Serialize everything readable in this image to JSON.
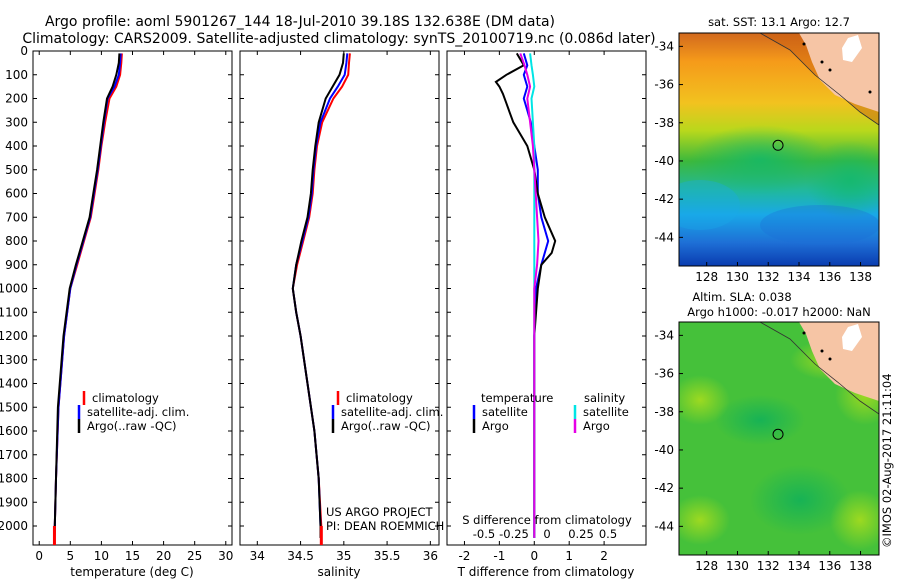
{
  "title_line1": "Argo profile: aoml 5901267_144 18-Jul-2010 39.18S 132.638E (DM data)",
  "title_line2": "Climatology: CARS2009. Satellite-adjusted climatology: synTS_20100719.nc (0.086d later)",
  "project_line1": "US ARGO PROJECT",
  "project_line2": "PI: DEAN ROEMMICH",
  "imos_stamp": "©IMOS 02-Aug-2017 21:11:04",
  "colors": {
    "climatology": "#ff0000",
    "satellite": "#0000ff",
    "argo": "#000000",
    "salinity_satellite": "#00e5e5",
    "salinity_argo": "#e600e6"
  },
  "chart_data": [
    {
      "type": "line",
      "id": "temperature",
      "xlabel": "temperature (deg C)",
      "ylabel": "",
      "xlim": [
        -1,
        31
      ],
      "ylim": [
        2080,
        0
      ],
      "xticks": [
        "0",
        "5",
        "10",
        "15",
        "20",
        "25",
        "30"
      ],
      "xtick_values": [
        0,
        5,
        10,
        15,
        20,
        25,
        30
      ],
      "yticks": [
        "0",
        "100",
        "200",
        "300",
        "400",
        "500",
        "600",
        "700",
        "800",
        "900",
        "1000",
        "1100",
        "1200",
        "1300",
        "1400",
        "1500",
        "1600",
        "1700",
        "1800",
        "1900",
        "2000"
      ],
      "ytick_values": [
        0,
        100,
        200,
        300,
        400,
        500,
        600,
        700,
        800,
        900,
        1000,
        1100,
        1200,
        1300,
        1400,
        1500,
        1600,
        1700,
        1800,
        1900,
        2000
      ],
      "legend": [
        "climatology",
        "satellite-adj. clim.",
        "Argo(..raw -QC)"
      ],
      "series": [
        {
          "name": "climatology",
          "color_key": "climatology",
          "depth": [
            10,
            50,
            100,
            150,
            200,
            300,
            400,
            500,
            600,
            700,
            800,
            900,
            1000,
            1200,
            1500,
            1800,
            2000,
            2050
          ],
          "values": [
            13.3,
            13.2,
            13.0,
            12.4,
            11.3,
            10.6,
            10.0,
            9.5,
            8.9,
            8.3,
            7.2,
            6.1,
            5.0,
            4.0,
            3.1,
            2.7,
            2.5,
            2.45
          ]
        },
        {
          "name": "satellite-adj. clim.",
          "color_key": "satellite",
          "depth": [
            10,
            50,
            100,
            150,
            200,
            300,
            400,
            500,
            600,
            700,
            800,
            900,
            1000,
            1200,
            1500,
            1800,
            2000,
            2050
          ],
          "values": [
            13.1,
            13.0,
            12.8,
            12.1,
            11.0,
            10.4,
            9.9,
            9.4,
            8.8,
            8.2,
            7.1,
            6.0,
            5.0,
            4.0,
            3.1,
            2.7,
            2.5,
            2.45
          ]
        },
        {
          "name": "Argo(..raw -QC)",
          "color_key": "argo",
          "depth": [
            10,
            50,
            100,
            150,
            200,
            300,
            400,
            500,
            600,
            700,
            800,
            900,
            1000,
            1200,
            1500,
            1800,
            2000,
            2050
          ],
          "values": [
            12.9,
            12.8,
            12.4,
            11.8,
            10.9,
            10.3,
            9.8,
            9.3,
            8.7,
            8.1,
            7.0,
            5.9,
            4.9,
            3.9,
            3.0,
            2.7,
            2.5,
            2.45
          ]
        }
      ]
    },
    {
      "type": "line",
      "id": "salinity",
      "xlabel": "salinity",
      "xlim": [
        33.8,
        36.1
      ],
      "ylim": [
        2080,
        0
      ],
      "xticks": [
        "34",
        "34.5",
        "35",
        "35.5",
        "36"
      ],
      "xtick_values": [
        34,
        34.5,
        35,
        35.5,
        36
      ],
      "legend": [
        "climatology",
        "satellite-adj. clim.",
        "Argo(..raw -QC)"
      ],
      "series": [
        {
          "name": "climatology",
          "color_key": "climatology",
          "depth": [
            10,
            50,
            100,
            150,
            200,
            300,
            400,
            500,
            600,
            700,
            800,
            900,
            1000,
            1100,
            1200,
            1400,
            1600,
            1800,
            2000,
            2050
          ],
          "values": [
            35.07,
            35.06,
            35.05,
            34.98,
            34.88,
            34.75,
            34.69,
            34.66,
            34.64,
            34.6,
            34.53,
            34.46,
            34.41,
            34.45,
            34.5,
            34.58,
            34.66,
            34.71,
            34.74,
            34.74
          ]
        },
        {
          "name": "satellite-adj. clim.",
          "color_key": "satellite",
          "depth": [
            10,
            50,
            100,
            150,
            200,
            300,
            400,
            500,
            600,
            700,
            800,
            900,
            1000,
            1100,
            1200,
            1400,
            1600,
            1800,
            2000,
            2050
          ],
          "values": [
            35.04,
            35.03,
            35.01,
            34.93,
            34.84,
            34.73,
            34.68,
            34.65,
            34.63,
            34.59,
            34.52,
            34.45,
            34.41,
            34.45,
            34.5,
            34.58,
            34.66,
            34.71,
            34.73,
            34.73
          ]
        },
        {
          "name": "Argo(..raw -QC)",
          "color_key": "argo",
          "depth": [
            10,
            50,
            100,
            150,
            200,
            300,
            400,
            500,
            600,
            700,
            800,
            900,
            1000,
            1100,
            1200,
            1400,
            1600,
            1800,
            2000,
            2050
          ],
          "values": [
            35.0,
            34.99,
            34.95,
            34.87,
            34.79,
            34.71,
            34.67,
            34.64,
            34.62,
            34.58,
            34.51,
            34.45,
            34.41,
            34.45,
            34.5,
            34.58,
            34.66,
            34.71,
            34.73,
            34.73
          ]
        }
      ]
    },
    {
      "type": "line",
      "id": "differences",
      "xlabel": "T difference from climatology",
      "xlabel_top": "S difference from climatology",
      "xlim": [
        -2.5,
        3.2
      ],
      "ylim": [
        2080,
        0
      ],
      "xticks": [
        "-2",
        "-1",
        "0",
        "1",
        "2"
      ],
      "xtick_values": [
        -2,
        -1,
        0,
        1,
        2
      ],
      "xticks_top": [
        "-0.5",
        "-0.25",
        "0",
        "0.25",
        "0.5"
      ],
      "legend_titles": [
        "temperature",
        "salinity"
      ],
      "legend": [
        "satellite",
        "Argo",
        "satellite",
        "Argo"
      ],
      "series": [
        {
          "name": "satellite",
          "group": "temperature",
          "color_key": "satellite",
          "depth": [
            10,
            60,
            100,
            150,
            200,
            250,
            300,
            400,
            500,
            600,
            700,
            800,
            900,
            1000,
            1200,
            1500,
            2050
          ],
          "values": [
            -0.3,
            -0.2,
            -0.3,
            -0.2,
            -0.3,
            -0.2,
            -0.1,
            0.0,
            0.1,
            0.1,
            0.2,
            0.4,
            0.2,
            0.05,
            0.0,
            0.0,
            0.0
          ]
        },
        {
          "name": "Argo",
          "group": "temperature",
          "color_key": "argo",
          "depth": [
            10,
            60,
            100,
            130,
            150,
            180,
            220,
            260,
            300,
            350,
            400,
            500,
            600,
            700,
            800,
            850,
            900,
            1000,
            1200,
            1500,
            2050
          ],
          "values": [
            -0.5,
            -0.3,
            -0.8,
            -1.1,
            -1.0,
            -0.9,
            -0.8,
            -0.7,
            -0.6,
            -0.4,
            -0.2,
            0.0,
            0.1,
            0.3,
            0.6,
            0.5,
            0.2,
            0.1,
            0.0,
            0.0,
            0.0
          ]
        },
        {
          "name": "satellite",
          "group": "salinity",
          "color_key": "salinity_satellite",
          "depth": [
            10,
            60,
            100,
            150,
            200,
            300,
            400,
            500,
            600,
            700,
            800,
            900,
            1000,
            1200,
            1500,
            2050
          ],
          "values": [
            -0.03,
            -0.02,
            -0.01,
            0.0,
            -0.02,
            -0.01,
            0.0,
            0.0,
            0.0,
            0.0,
            0.0,
            0.0,
            0.0,
            0.0,
            0.0,
            0.0
          ]
        },
        {
          "name": "Argo",
          "group": "salinity",
          "color_key": "salinity_argo",
          "depth": [
            10,
            60,
            100,
            150,
            200,
            300,
            400,
            500,
            600,
            700,
            800,
            900,
            1000,
            1200,
            1500,
            2050
          ],
          "values": [
            -0.1,
            -0.07,
            -0.05,
            -0.03,
            -0.05,
            -0.03,
            -0.01,
            0.0,
            0.01,
            0.02,
            0.03,
            0.02,
            0.0,
            0.0,
            0.0,
            0.0
          ]
        }
      ]
    },
    {
      "type": "heatmap",
      "id": "map_sst",
      "title": "sat. SST: 13.1  Argo: 12.7",
      "xlim": [
        126.2,
        139.2
      ],
      "ylim": [
        -45.5,
        -33.3
      ],
      "xticks": [
        "128",
        "130",
        "132",
        "134",
        "136",
        "138"
      ],
      "xtick_values": [
        128,
        130,
        132,
        134,
        136,
        138
      ],
      "yticks": [
        "-34",
        "-36",
        "-38",
        "-40",
        "-42",
        "-44"
      ],
      "ytick_values": [
        -34,
        -36,
        -38,
        -40,
        -42,
        -44
      ],
      "float_position": [
        132.638,
        -39.18
      ]
    },
    {
      "type": "heatmap",
      "id": "map_sla",
      "title_line1": "Altim. SLA: 0.038",
      "title_line2": "Argo h1000: -0.017 h2000: NaN",
      "xlim": [
        126.2,
        139.2
      ],
      "ylim": [
        -45.5,
        -33.3
      ],
      "xticks": [
        "128",
        "130",
        "132",
        "134",
        "136",
        "138"
      ],
      "xtick_values": [
        128,
        130,
        132,
        134,
        136,
        138
      ],
      "yticks": [
        "-34",
        "-36",
        "-38",
        "-40",
        "-42",
        "-44"
      ],
      "ytick_values": [
        -34,
        -36,
        -38,
        -40,
        -42,
        -44
      ],
      "float_position": [
        132.638,
        -39.18
      ]
    }
  ]
}
